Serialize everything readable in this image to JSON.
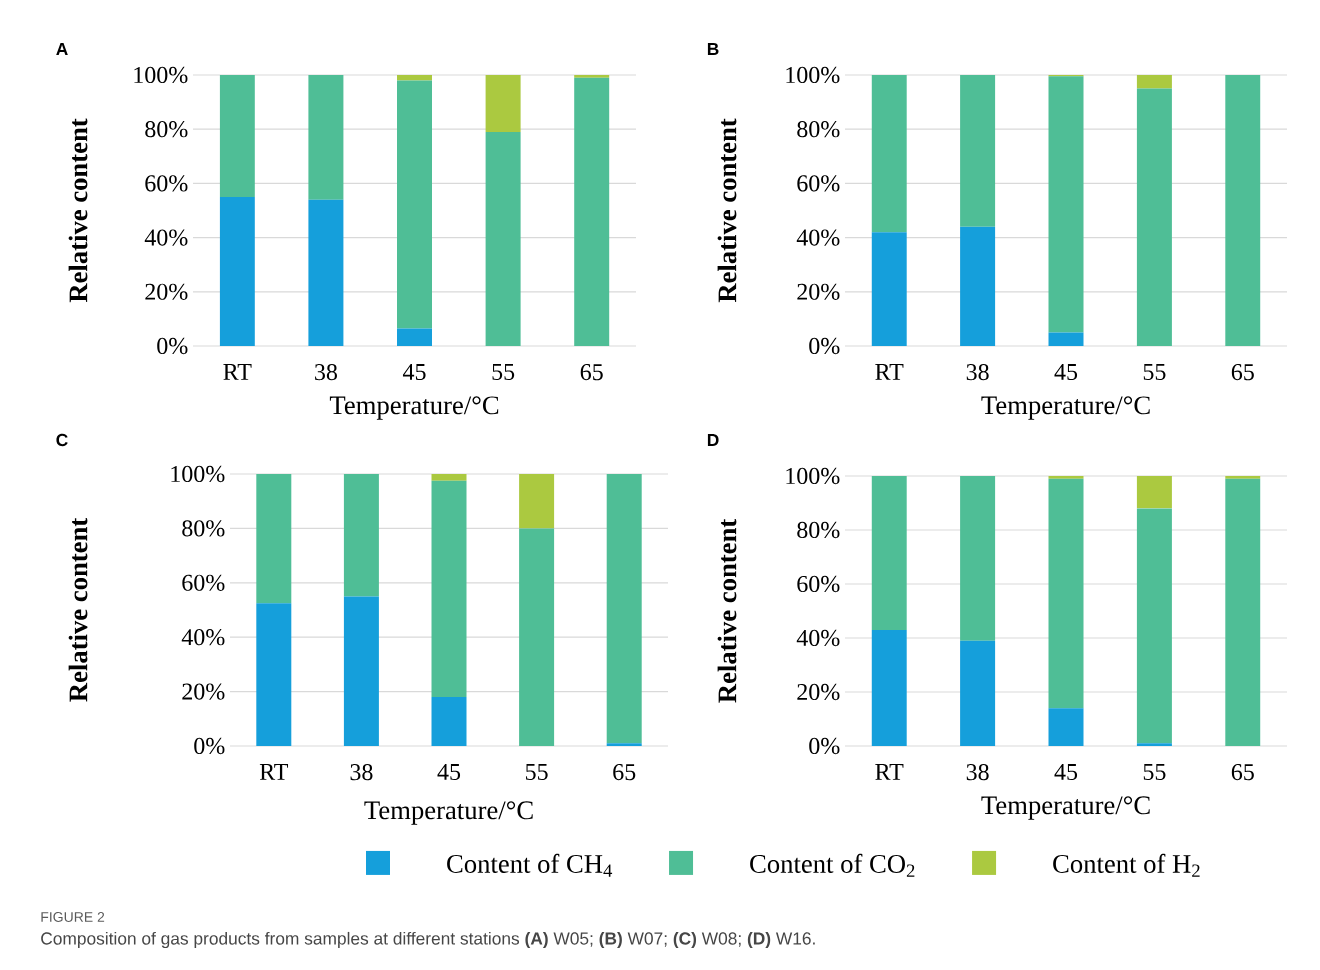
{
  "chart_data": [
    {
      "type": "bar",
      "stacked": true,
      "title": "A",
      "xlabel": "Temperature/°C",
      "ylabel": "Relative content",
      "categories": [
        "RT",
        "38",
        "45",
        "55",
        "65"
      ],
      "series": [
        {
          "color": "#159fdb",
          "values": [
            55,
            54,
            6.5,
            0,
            0
          ]
        },
        {
          "color": "#4fbe96",
          "values": [
            45,
            46,
            91.5,
            79,
            99
          ]
        },
        {
          "color": "#abc940",
          "values": [
            0,
            0,
            2,
            21,
            1
          ]
        }
      ],
      "ylim": [
        0,
        100
      ],
      "yticks": [
        {
          "value": 0,
          "label": "0%"
        },
        {
          "value": 20,
          "label": "20%"
        },
        {
          "value": 40,
          "label": "40%"
        },
        {
          "value": 60,
          "label": "60%"
        },
        {
          "value": 80,
          "label": "80%"
        },
        {
          "value": 100,
          "label": "100%"
        }
      ],
      "grid": "y",
      "legend": false
    },
    {
      "type": "bar",
      "stacked": true,
      "title": "B",
      "xlabel": "Temperature/°C",
      "ylabel": "Relative content",
      "categories": [
        "RT",
        "38",
        "45",
        "55",
        "65"
      ],
      "series": [
        {
          "color": "#159fdb",
          "values": [
            42,
            44,
            5,
            0,
            0
          ]
        },
        {
          "color": "#4fbe96",
          "values": [
            58,
            56,
            94.5,
            95,
            100
          ]
        },
        {
          "color": "#abc940",
          "values": [
            0,
            0,
            0.5,
            5,
            0
          ]
        }
      ],
      "ylim": [
        0,
        100
      ],
      "yticks": [
        {
          "value": 0,
          "label": "0%"
        },
        {
          "value": 20,
          "label": "20%"
        },
        {
          "value": 40,
          "label": "40%"
        },
        {
          "value": 60,
          "label": "60%"
        },
        {
          "value": 80,
          "label": "80%"
        },
        {
          "value": 100,
          "label": "100%"
        }
      ],
      "grid": "y",
      "legend": false
    },
    {
      "type": "bar",
      "stacked": true,
      "title": "C",
      "xlabel": "Temperature/°C",
      "ylabel": "Relative content",
      "categories": [
        "RT",
        "38",
        "45",
        "55",
        "65"
      ],
      "series": [
        {
          "name": "Content of CH$_{4}$",
          "color": "#159fdb",
          "values": [
            52.5,
            55,
            18,
            0,
            1
          ]
        },
        {
          "name": "Content of CO$_{2}$",
          "color": "#4fbe96",
          "values": [
            47.5,
            45,
            79.5,
            80,
            99
          ]
        },
        {
          "name": "Content of H$_{2}$",
          "color": "#abc940",
          "values": [
            0,
            0,
            2.5,
            20,
            0
          ]
        }
      ],
      "ylim": [
        0,
        100
      ],
      "yticks": [
        {
          "value": 0,
          "label": "0%"
        },
        {
          "value": 20,
          "label": "20%"
        },
        {
          "value": 40,
          "label": "40%"
        },
        {
          "value": 60,
          "label": "60%"
        },
        {
          "value": 80,
          "label": "80%"
        },
        {
          "value": 100,
          "label": "100%"
        }
      ],
      "grid": "y",
      "legend": "bottom"
    },
    {
      "type": "bar",
      "stacked": true,
      "title": "D",
      "xlabel": "Temperature/°C",
      "ylabel": "Relative content",
      "categories": [
        "RT",
        "38",
        "45",
        "55",
        "65"
      ],
      "series": [
        {
          "color": "#159fdb",
          "values": [
            43,
            39,
            14,
            1,
            0
          ]
        },
        {
          "color": "#4fbe96",
          "values": [
            57,
            61,
            85,
            87,
            99
          ]
        },
        {
          "color": "#abc940",
          "values": [
            0,
            0,
            1,
            12,
            1
          ]
        }
      ],
      "ylim": [
        0,
        100
      ],
      "yticks": [
        {
          "value": 0,
          "label": "0%"
        },
        {
          "value": 20,
          "label": "20%"
        },
        {
          "value": 40,
          "label": "40%"
        },
        {
          "value": 60,
          "label": "60%"
        },
        {
          "value": 80,
          "label": "80%"
        },
        {
          "value": 100,
          "label": "100%"
        }
      ],
      "grid": "y",
      "legend": false,
      "annotations": [
        "FIGURE 2",
        "Composition of gas products from samples at different stations **(A)** W05; **(B)** W07; **(C)** W08; **(D)** W16."
      ]
    }
  ]
}
